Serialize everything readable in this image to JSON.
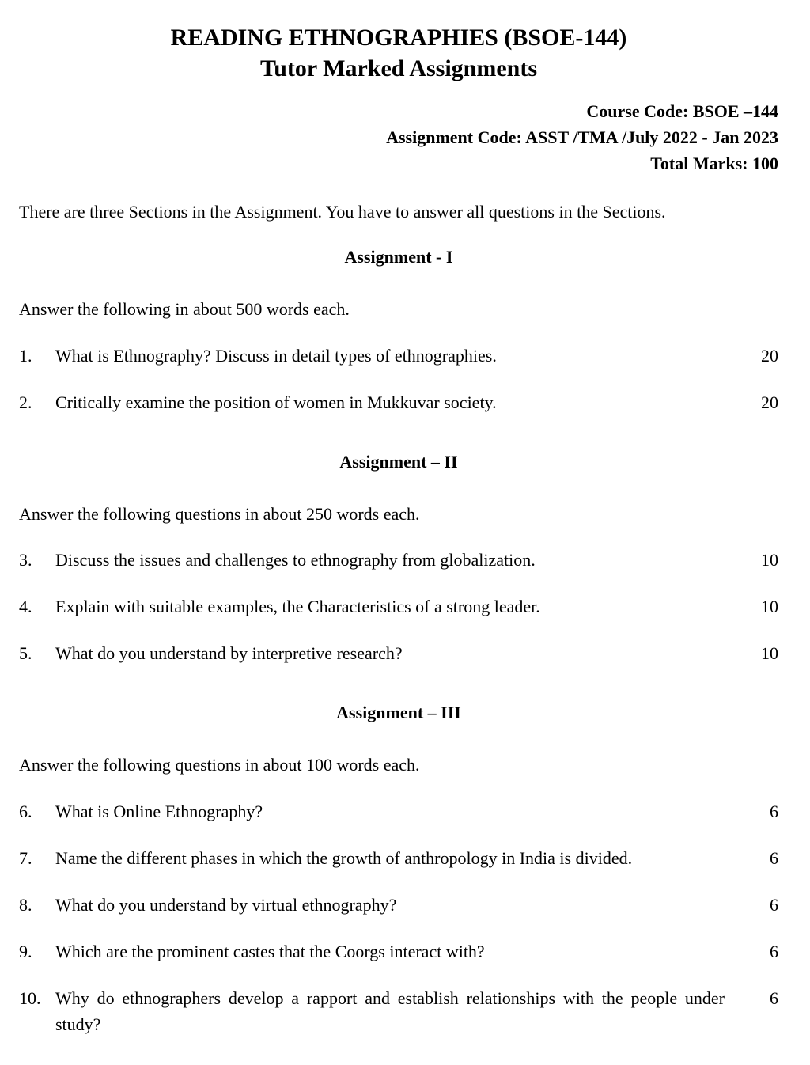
{
  "title": {
    "line1": "READING ETHNOGRAPHIES (BSOE-144)",
    "line2": "Tutor Marked Assignments"
  },
  "meta": {
    "course_code": "Course Code: BSOE –144",
    "assignment_code": "Assignment Code: ASST /TMA /July 2022 - Jan 2023",
    "total_marks": "Total Marks: 100"
  },
  "intro": "There are three Sections in the Assignment. You have to answer all questions in the Sections.",
  "sections": [
    {
      "heading": "Assignment - I",
      "instruction": "Answer the following in about 500 words each.",
      "questions": [
        {
          "num": "1.",
          "text": "What is Ethnography? Discuss in detail types of ethnographies.",
          "marks": "20"
        },
        {
          "num": "2.",
          "text": "Critically examine the position of women in Mukkuvar society.",
          "marks": "20"
        }
      ]
    },
    {
      "heading": "Assignment – II",
      "instruction": "Answer the following questions in about 250 words each.",
      "questions": [
        {
          "num": "3.",
          "text": "Discuss the issues and challenges to ethnography from globalization.",
          "marks": "10"
        },
        {
          "num": "4.",
          "text": "Explain with suitable examples, the Characteristics of a strong leader.",
          "marks": "10"
        },
        {
          "num": "5.",
          "text": "What do you understand by interpretive research?",
          "marks": "10"
        }
      ]
    },
    {
      "heading": "Assignment – III",
      "instruction": "Answer the following questions in about 100 words each.",
      "questions": [
        {
          "num": "6.",
          "text": "What is Online Ethnography?",
          "marks": "6"
        },
        {
          "num": "7.",
          "text": "Name the different phases in which the growth of anthropology in India is divided.",
          "marks": "6"
        },
        {
          "num": "8.",
          "text": "What do you understand by virtual ethnography?",
          "marks": "6"
        },
        {
          "num": "9.",
          "text": "Which are the prominent castes that the Coorgs interact with?",
          "marks": "6"
        },
        {
          "num": "10.",
          "text": "Why do ethnographers develop a rapport and establish relationships with the people under study?",
          "marks": "6",
          "justify": true
        }
      ]
    }
  ],
  "styling": {
    "background_color": "#ffffff",
    "text_color": "#000000",
    "title_fontsize": 30,
    "body_fontsize": 22,
    "font_family": "Times New Roman"
  }
}
